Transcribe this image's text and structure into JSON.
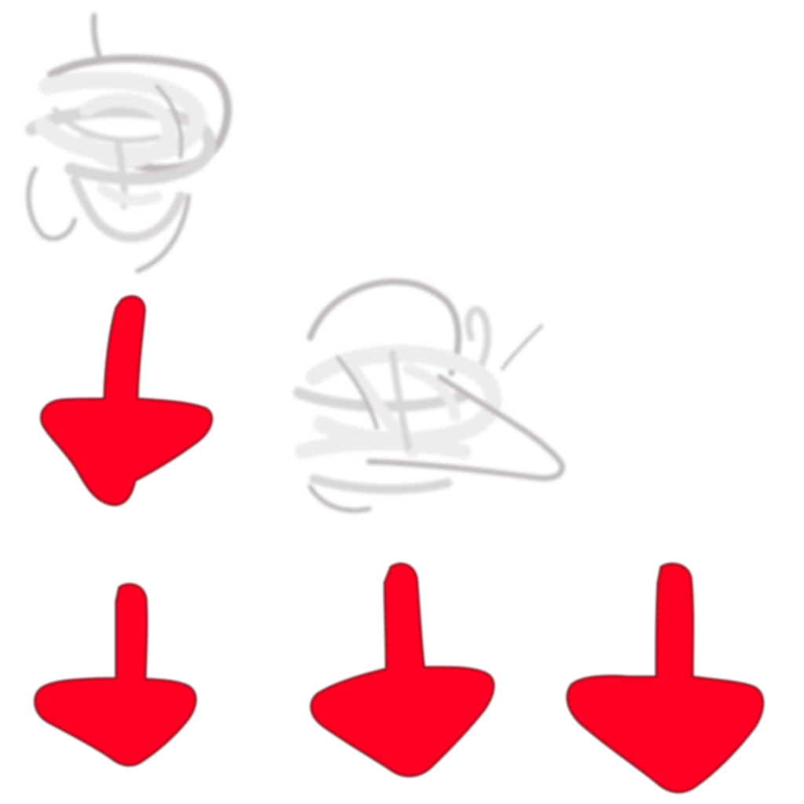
{
  "colors": {
    "background": "#ffffff",
    "arrow_fill": "#ff0022",
    "arrow_edge": "#8a0f1c",
    "smudge_light": "#eeeced",
    "smudge_mid": "#d9d6d7",
    "smudge_dark": "#bdb8ba"
  },
  "icons": {
    "arrows": [
      "down-arrow-icon",
      "down-arrow-icon",
      "down-arrow-icon",
      "down-arrow-icon"
    ],
    "smudges": [
      "gray-smudge-icon",
      "gray-smudge-icon"
    ]
  }
}
